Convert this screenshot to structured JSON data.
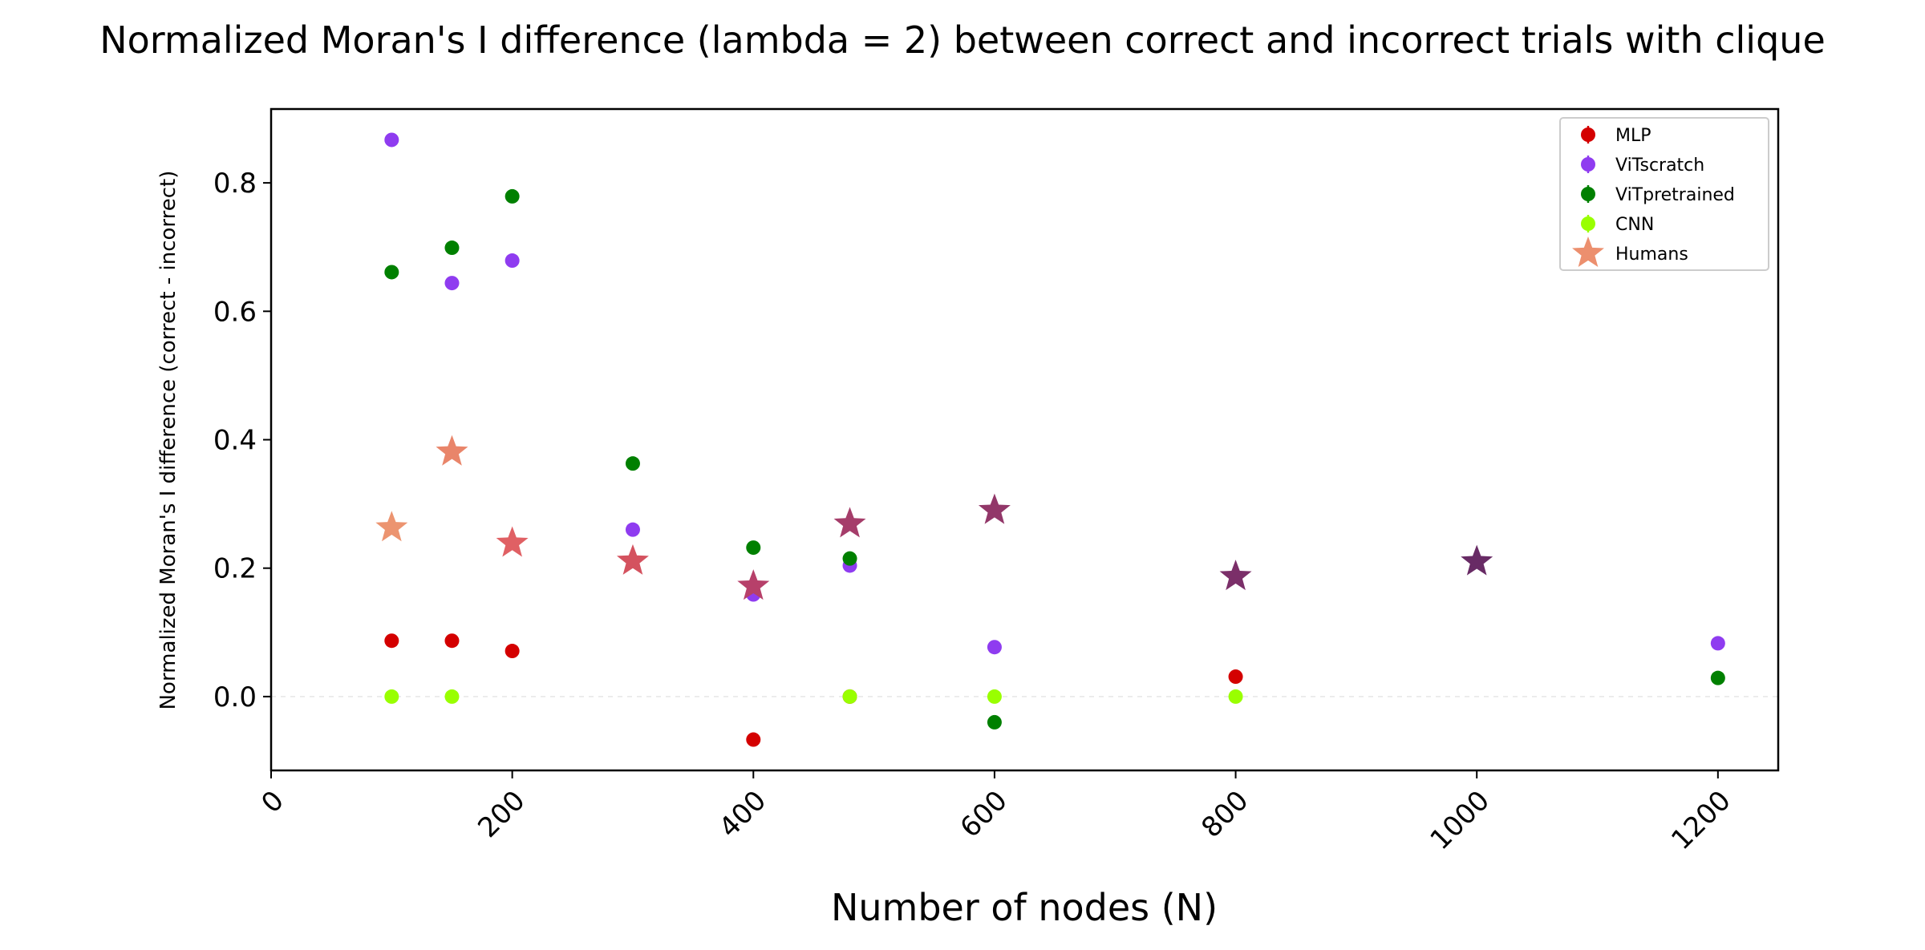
{
  "chart_data": {
    "type": "scatter",
    "title": "Normalized Moran's I difference (lambda = 2) between correct and incorrect trials with clique",
    "xlabel": "Number of nodes (N)",
    "ylabel": "Normalized Moran's I difference (correct - incorrect)",
    "xlim": [
      0,
      1250
    ],
    "ylim": [
      -0.115,
      0.915
    ],
    "xticks": [
      0,
      200,
      400,
      600,
      800,
      1000,
      1200
    ],
    "yticks": [
      0.0,
      0.2,
      0.4,
      0.6,
      0.8
    ],
    "xtick_labels": [
      "0",
      "200",
      "400",
      "600",
      "800",
      "1000",
      "1200"
    ],
    "ytick_labels": [
      "0.0",
      "0.2",
      "0.4",
      "0.6",
      "0.8"
    ],
    "reference_line_y": 0.0,
    "legend_position": "top-right",
    "series": [
      {
        "name": "MLP",
        "marker": "circle",
        "color": "#d40000",
        "points": [
          [
            100,
            0.087
          ],
          [
            150,
            0.087
          ],
          [
            200,
            0.071
          ],
          [
            400,
            -0.067
          ],
          [
            480,
            0.0
          ],
          [
            800,
            0.031
          ]
        ]
      },
      {
        "name": "ViTscratch",
        "marker": "circle",
        "color": "#8f3cf0",
        "points": [
          [
            100,
            0.867
          ],
          [
            150,
            0.644
          ],
          [
            200,
            0.679
          ],
          [
            300,
            0.26
          ],
          [
            400,
            0.159
          ],
          [
            480,
            0.204
          ],
          [
            600,
            0.077
          ],
          [
            1200,
            0.083
          ]
        ]
      },
      {
        "name": "ViTpretrained",
        "marker": "circle",
        "color": "#008000",
        "points": [
          [
            100,
            0.661
          ],
          [
            150,
            0.699
          ],
          [
            200,
            0.779
          ],
          [
            300,
            0.363
          ],
          [
            400,
            0.232
          ],
          [
            480,
            0.215
          ],
          [
            600,
            -0.04
          ],
          [
            1200,
            0.029
          ]
        ]
      },
      {
        "name": "CNN",
        "marker": "circle",
        "color": "#99ff00",
        "points": [
          [
            100,
            0.0
          ],
          [
            150,
            0.0
          ],
          [
            480,
            0.0
          ],
          [
            600,
            0.0
          ],
          [
            800,
            0.0
          ]
        ]
      },
      {
        "name": "Humans",
        "marker": "star",
        "color": "#ec8f6e",
        "points": [
          [
            100,
            0.263,
            "#ec9470"
          ],
          [
            150,
            0.381,
            "#e9856a"
          ],
          [
            200,
            0.239,
            "#e06064"
          ],
          [
            300,
            0.211,
            "#d4525f"
          ],
          [
            400,
            0.172,
            "#b7406a"
          ],
          [
            480,
            0.269,
            "#a53d6a"
          ],
          [
            600,
            0.29,
            "#923769"
          ],
          [
            800,
            0.187,
            "#7b2f69"
          ],
          [
            1000,
            0.21,
            "#682b65"
          ]
        ]
      }
    ]
  }
}
